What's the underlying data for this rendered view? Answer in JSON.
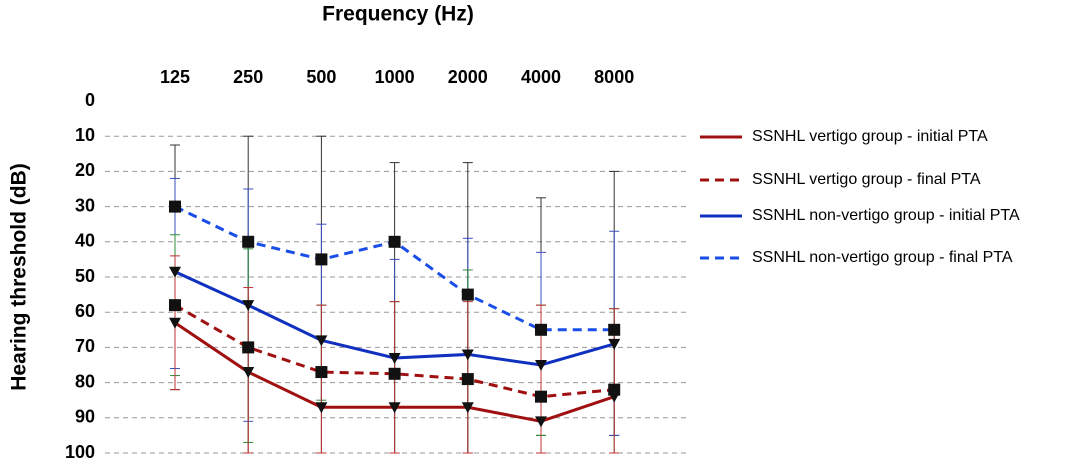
{
  "chart_data": {
    "type": "line",
    "title": "Frequency (Hz)",
    "y_label": "Hearing threshold (dB)",
    "categories": [
      "125",
      "250",
      "500",
      "1000",
      "2000",
      "4000",
      "8000"
    ],
    "ylim": [
      0,
      100
    ],
    "y_inverted": true,
    "yticks": [
      0,
      10,
      20,
      30,
      40,
      50,
      60,
      70,
      80,
      90,
      100
    ],
    "grid": true,
    "legend": "right",
    "series": [
      {
        "name": "SSNHL vertigo group - initial PTA",
        "color": "#a01010",
        "dash": false,
        "marker": "triangle",
        "values": [
          63,
          77,
          87,
          87,
          87,
          91,
          84
        ]
      },
      {
        "name": "SSNHL vertigo group - final PTA",
        "color": "#a01010",
        "dash": true,
        "marker": "square",
        "values": [
          58,
          70,
          77,
          77.5,
          79,
          84,
          82
        ]
      },
      {
        "name": "SSNHL non-vertigo group - initial PTA",
        "color": "#1030c0",
        "dash": false,
        "marker": "triangle",
        "values": [
          48.5,
          58,
          68,
          73,
          72,
          75,
          69
        ]
      },
      {
        "name": "SSNHL non-vertigo group - final PTA",
        "color": "#1a4ee8",
        "dash": true,
        "marker": "square",
        "values": [
          30,
          40,
          45,
          40,
          55,
          65,
          65
        ]
      }
    ],
    "error_bars": [
      {
        "color": "#333333",
        "low": [
          12.5,
          10,
          10,
          17.5,
          17.5,
          27.5,
          20
        ],
        "high": [
          82,
          100,
          100,
          100,
          100,
          95,
          95
        ]
      },
      {
        "color": "#3a4ec0",
        "low": [
          22,
          25,
          35,
          45,
          39,
          43,
          37
        ],
        "high": [
          76,
          91,
          86,
          100,
          100,
          100,
          95
        ]
      },
      {
        "color": "#2e8b3a",
        "low": [
          38,
          42,
          58,
          57,
          48,
          58,
          59
        ],
        "high": [
          78,
          97,
          85,
          100,
          100,
          95,
          100
        ]
      },
      {
        "color": "#c03030",
        "low": [
          44,
          53,
          58,
          57,
          57,
          58,
          59
        ],
        "high": [
          82,
          100,
          100,
          100,
          100,
          100,
          100
        ]
      }
    ]
  }
}
